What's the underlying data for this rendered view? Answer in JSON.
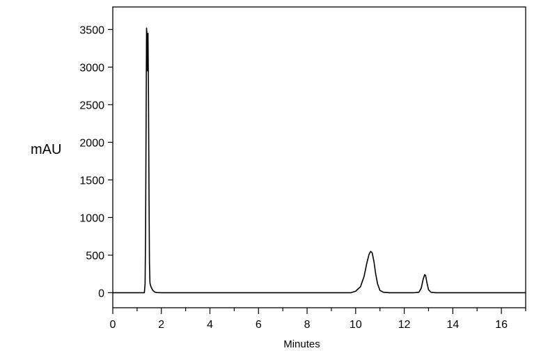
{
  "chart_data": {
    "type": "line",
    "title": "",
    "xlabel": "Minutes",
    "ylabel": "mAU",
    "xlim": [
      0,
      17
    ],
    "ylim": [
      -200,
      3800
    ],
    "x_ticks": [
      0,
      2,
      4,
      6,
      8,
      10,
      12,
      14,
      16
    ],
    "y_ticks": [
      0,
      500,
      1000,
      1500,
      2000,
      2500,
      3000,
      3500
    ],
    "grid": false,
    "legend": "none",
    "line_color": "#000000",
    "series": [
      {
        "x": [
          0.0,
          1.0,
          1.3,
          1.33,
          1.35,
          1.37,
          1.39,
          1.41,
          1.43,
          1.45,
          1.47,
          1.49,
          1.51,
          1.53,
          1.56,
          1.6,
          1.65,
          1.72,
          1.8,
          2.0,
          4.0,
          6.0,
          8.0,
          9.8,
          10.0,
          10.2,
          10.35,
          10.45,
          10.55,
          10.62,
          10.68,
          10.75,
          10.82,
          10.9,
          11.0,
          11.15,
          11.4,
          12.0,
          12.4,
          12.6,
          12.7,
          12.78,
          12.84,
          12.88,
          12.93,
          13.0,
          13.1,
          13.3,
          14.0,
          16.0,
          17.0
        ],
        "y": [
          0,
          0,
          0,
          120,
          800,
          2200,
          3520,
          3400,
          2950,
          3450,
          2600,
          1400,
          400,
          130,
          90,
          60,
          30,
          10,
          2,
          0,
          0,
          0,
          0,
          0,
          20,
          80,
          220,
          380,
          510,
          550,
          530,
          420,
          260,
          120,
          30,
          5,
          0,
          0,
          0,
          5,
          60,
          180,
          240,
          230,
          140,
          40,
          5,
          0,
          0,
          0,
          0
        ]
      }
    ]
  }
}
